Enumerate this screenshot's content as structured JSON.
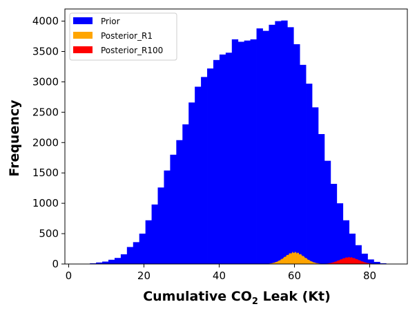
{
  "chart_data": {
    "type": "histogram",
    "xlabel_prefix": "Cumulative CO",
    "xlabel_sub": "2",
    "xlabel_suffix": " Leak (Kt)",
    "ylabel": "Frequency",
    "xlim": [
      -1,
      90
    ],
    "ylim": [
      0,
      4200
    ],
    "xticks": [
      0,
      20,
      40,
      60,
      80
    ],
    "yticks": [
      0,
      500,
      1000,
      1500,
      2000,
      2500,
      3000,
      3500,
      4000
    ],
    "legend_position": "top-left",
    "series": [
      {
        "name": "Prior",
        "color": "#0000ff",
        "bin_width": 1.64,
        "bin_start": 4.0,
        "values": [
          5,
          12,
          25,
          40,
          70,
          100,
          160,
          280,
          360,
          500,
          720,
          980,
          1260,
          1540,
          1800,
          2040,
          2300,
          2660,
          2920,
          3080,
          3220,
          3360,
          3450,
          3480,
          3700,
          3660,
          3680,
          3700,
          3880,
          3840,
          3940,
          4000,
          4010,
          3900,
          3620,
          3280,
          2970,
          2580,
          2140,
          1700,
          1320,
          1000,
          720,
          500,
          310,
          170,
          75,
          35,
          12,
          4
        ]
      },
      {
        "name": "Posterior_R1",
        "color": "#ffa500",
        "peak_x": 60,
        "peak_value": 190,
        "sigma": 2.6,
        "x_range": [
          53,
          67
        ]
      },
      {
        "name": "Posterior_R100",
        "color": "#ff0000",
        "peak_x": 74.5,
        "peak_value": 110,
        "sigma": 2.5,
        "x_range": [
          68,
          82
        ]
      }
    ]
  }
}
